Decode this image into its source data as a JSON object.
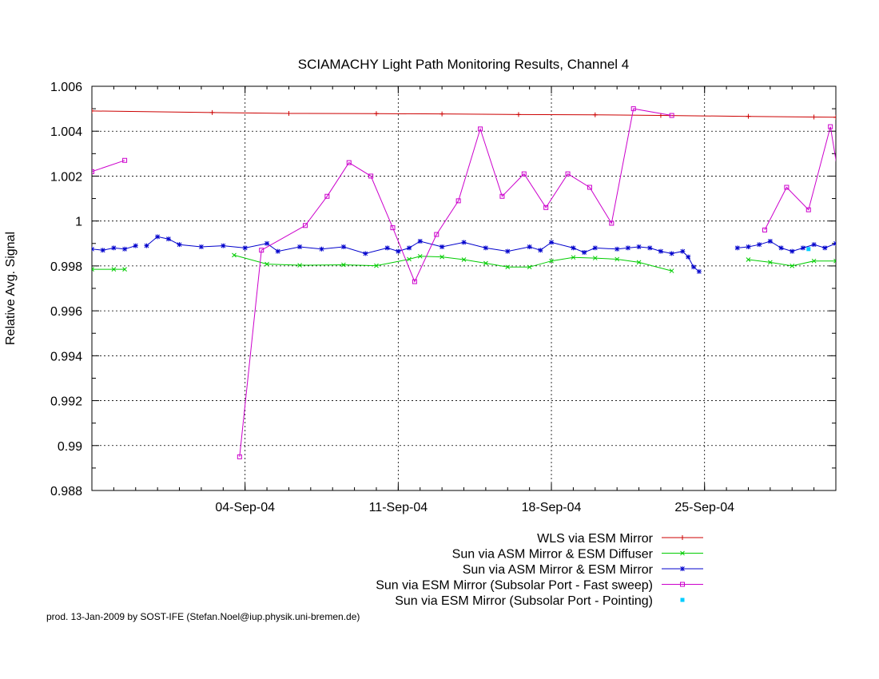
{
  "chart_data": {
    "type": "line",
    "title": "SCIAMACHY Light Path Monitoring Results, Channel 4",
    "xlabel": "",
    "ylabel": "Relative Avg. Signal",
    "xlim": [
      "2004-08-28T00:00",
      "2004-10-01T00:00"
    ],
    "ylim": [
      0.988,
      1.006
    ],
    "x_ticks": [
      "04-Sep-04",
      "11-Sep-04",
      "18-Sep-04",
      "25-Sep-04"
    ],
    "y_ticks": [
      "0.988",
      "0.99",
      "0.992",
      "0.994",
      "0.996",
      "0.998",
      "1",
      "1.002",
      "1.004",
      "1.006"
    ],
    "grid": true,
    "legend_position": "bottom-right",
    "footer": "prod. 13-Jan-2009 by SOST-IFE (Stefan.Noel@iup.physik.uni-bremen.de)",
    "series": [
      {
        "name": "WLS via ESM Mirror",
        "color": "#cc0000",
        "marker": "plus",
        "points": [
          [
            "2004-08-28T00:00",
            1.0049
          ],
          [
            "2004-09-02T12:00",
            1.00483
          ],
          [
            "2004-09-06T00:00",
            1.00479
          ],
          [
            "2004-09-10T00:00",
            1.00478
          ],
          [
            "2004-09-13T00:00",
            1.00477
          ],
          [
            "2004-09-16T12:00",
            1.00474
          ],
          [
            "2004-09-20T00:00",
            1.00473
          ],
          [
            "2004-09-23T00:00",
            1.0047
          ],
          [
            "2004-09-27T00:00",
            1.00466
          ],
          [
            "2004-09-30T00:00",
            1.00463
          ],
          [
            "2004-10-01T00:00",
            1.00462
          ]
        ]
      },
      {
        "name": "Sun via ASM Mirror & ESM Diffuser",
        "color": "#00cc00",
        "marker": "cross",
        "segments": [
          [
            [
              "2004-08-28T00:00",
              0.99785
            ],
            [
              "2004-08-29T00:00",
              0.99785
            ],
            [
              "2004-08-29T12:00",
              0.99785
            ]
          ],
          [
            [
              "2004-09-03T12:00",
              0.99848
            ],
            [
              "2004-09-05T00:00",
              0.99808
            ],
            [
              "2004-09-06T12:00",
              0.99803
            ],
            [
              "2004-09-08T12:00",
              0.99805
            ],
            [
              "2004-09-10T00:00",
              0.99801
            ],
            [
              "2004-09-11T12:00",
              0.9983
            ],
            [
              "2004-09-12T00:00",
              0.99843
            ],
            [
              "2004-09-13T00:00",
              0.9984
            ],
            [
              "2004-09-14T00:00",
              0.99828
            ],
            [
              "2004-09-15T00:00",
              0.99812
            ],
            [
              "2004-09-16T00:00",
              0.99795
            ],
            [
              "2004-09-17T00:00",
              0.99795
            ],
            [
              "2004-09-18T00:00",
              0.99822
            ],
            [
              "2004-09-19T00:00",
              0.99838
            ],
            [
              "2004-09-20T00:00",
              0.99835
            ],
            [
              "2004-09-21T00:00",
              0.9983
            ],
            [
              "2004-09-22T00:00",
              0.99816
            ],
            [
              "2004-09-23T12:00",
              0.99778
            ]
          ],
          [
            [
              "2004-09-27T00:00",
              0.99828
            ],
            [
              "2004-09-28T00:00",
              0.99816
            ],
            [
              "2004-09-29T00:00",
              0.998
            ],
            [
              "2004-09-30T00:00",
              0.99822
            ],
            [
              "2004-10-01T00:00",
              0.99822
            ]
          ]
        ]
      },
      {
        "name": "Sun via ASM Mirror & ESM Mirror",
        "color": "#0000cc",
        "marker": "star",
        "segments": [
          [
            [
              "2004-08-28T00:00",
              0.99875
            ],
            [
              "2004-08-28T12:00",
              0.9987
            ],
            [
              "2004-08-29T00:00",
              0.9988
            ],
            [
              "2004-08-29T12:00",
              0.99875
            ],
            [
              "2004-08-30T00:00",
              0.9989
            ]
          ],
          [
            [
              "2004-08-30T12:00",
              0.9989
            ],
            [
              "2004-08-31T00:00",
              0.9993
            ],
            [
              "2004-08-31T12:00",
              0.9992
            ],
            [
              "2004-09-01T00:00",
              0.99895
            ],
            [
              "2004-09-02T00:00",
              0.99885
            ],
            [
              "2004-09-03T00:00",
              0.9989
            ],
            [
              "2004-09-04T00:00",
              0.9988
            ],
            [
              "2004-09-05T00:00",
              0.999
            ],
            [
              "2004-09-05T12:00",
              0.99865
            ],
            [
              "2004-09-06T12:00",
              0.99885
            ],
            [
              "2004-09-07T12:00",
              0.99875
            ],
            [
              "2004-09-08T12:00",
              0.99885
            ],
            [
              "2004-09-09T12:00",
              0.99855
            ],
            [
              "2004-09-10T12:00",
              0.9988
            ],
            [
              "2004-09-11T00:00",
              0.99865
            ],
            [
              "2004-09-11T12:00",
              0.9988
            ],
            [
              "2004-09-12T00:00",
              0.9991
            ],
            [
              "2004-09-13T00:00",
              0.99885
            ],
            [
              "2004-09-14T00:00",
              0.99905
            ],
            [
              "2004-09-15T00:00",
              0.9988
            ],
            [
              "2004-09-16T00:00",
              0.99865
            ],
            [
              "2004-09-17T00:00",
              0.99885
            ],
            [
              "2004-09-17T12:00",
              0.9987
            ],
            [
              "2004-09-18T00:00",
              0.99905
            ],
            [
              "2004-09-19T00:00",
              0.9988
            ],
            [
              "2004-09-19T12:00",
              0.9986
            ],
            [
              "2004-09-20T00:00",
              0.9988
            ],
            [
              "2004-09-21T00:00",
              0.99875
            ],
            [
              "2004-09-21T12:00",
              0.9988
            ],
            [
              "2004-09-22T00:00",
              0.99885
            ],
            [
              "2004-09-22T12:00",
              0.9988
            ],
            [
              "2004-09-23T00:00",
              0.99865
            ],
            [
              "2004-09-23T12:00",
              0.99855
            ],
            [
              "2004-09-24T00:00",
              0.99865
            ],
            [
              "2004-09-24T06:00",
              0.9984
            ],
            [
              "2004-09-24T12:00",
              0.99795
            ],
            [
              "2004-09-24T18:00",
              0.99775
            ]
          ],
          [
            [
              "2004-09-26T12:00",
              0.9988
            ],
            [
              "2004-09-27T00:00",
              0.99885
            ],
            [
              "2004-09-27T12:00",
              0.99895
            ],
            [
              "2004-09-28T00:00",
              0.9991
            ],
            [
              "2004-09-28T12:00",
              0.9988
            ],
            [
              "2004-09-29T00:00",
              0.99865
            ],
            [
              "2004-09-29T12:00",
              0.9988
            ],
            [
              "2004-09-30T00:00",
              0.99895
            ],
            [
              "2004-09-30T12:00",
              0.9988
            ],
            [
              "2004-10-01T00:00",
              0.999
            ],
            [
              "2004-10-01T12:00",
              0.9988
            ],
            [
              "2004-10-02T00:00",
              0.99905
            ]
          ]
        ]
      },
      {
        "name": "Sun via ESM Mirror (Subsolar Port - Fast sweep)",
        "color": "#cc00cc",
        "marker": "square",
        "segments": [
          [
            [
              "2004-08-28T00:00",
              1.0022
            ],
            [
              "2004-08-29T12:00",
              1.0027
            ]
          ],
          [
            [
              "2004-09-03T18:00",
              0.9895
            ],
            [
              "2004-09-04T18:00",
              0.9987
            ],
            [
              "2004-09-06T18:00",
              0.9998
            ],
            [
              "2004-09-07T18:00",
              1.0011
            ],
            [
              "2004-09-08T18:00",
              1.0026
            ],
            [
              "2004-09-09T18:00",
              1.002
            ],
            [
              "2004-09-10T18:00",
              0.9997
            ],
            [
              "2004-09-11T18:00",
              0.9973
            ],
            [
              "2004-09-12T18:00",
              0.9994
            ],
            [
              "2004-09-13T18:00",
              1.0009
            ],
            [
              "2004-09-14T18:00",
              1.0041
            ],
            [
              "2004-09-15T18:00",
              1.0011
            ],
            [
              "2004-09-16T18:00",
              1.0021
            ],
            [
              "2004-09-17T18:00",
              1.0006
            ],
            [
              "2004-09-18T18:00",
              1.0021
            ],
            [
              "2004-09-19T18:00",
              1.0015
            ],
            [
              "2004-09-20T18:00",
              0.9999
            ],
            [
              "2004-09-21T18:00",
              1.005
            ],
            [
              "2004-09-23T12:00",
              1.0047
            ]
          ],
          [
            [
              "2004-09-27T18:00",
              0.9996
            ],
            [
              "2004-09-28T18:00",
              1.0015
            ],
            [
              "2004-09-29T18:00",
              1.0005
            ],
            [
              "2004-09-30T18:00",
              1.0042
            ],
            [
              "2004-10-01T18:00",
              0.9983
            ]
          ]
        ]
      },
      {
        "name": "Sun via ESM Mirror (Subsolar Port - Pointing)",
        "color": "#00ccff",
        "marker": "dot",
        "points": [
          [
            "2004-09-29T18:00",
            0.99875
          ]
        ]
      }
    ]
  }
}
